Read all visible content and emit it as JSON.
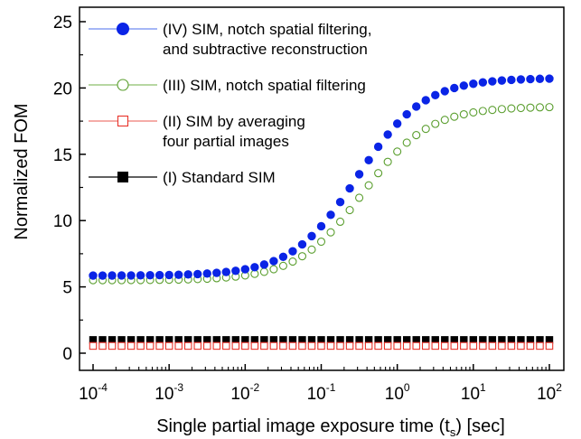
{
  "chart_data": {
    "type": "scatter",
    "xscale": "log",
    "xlim": [
      0.0001,
      100
    ],
    "ylim": [
      0,
      25
    ],
    "xlabel_main": "Single partial image exposure time (t",
    "xlabel_sub": "s",
    "xlabel_end": ") [sec]",
    "ylabel": "Normalized FOM",
    "x_ticks": [
      {
        "base": "10",
        "exp": "-4",
        "value": 0.0001
      },
      {
        "base": "10",
        "exp": "-3",
        "value": 0.001
      },
      {
        "base": "10",
        "exp": "-2",
        "value": 0.01
      },
      {
        "base": "10",
        "exp": "-1",
        "value": 0.1
      },
      {
        "base": "10",
        "exp": "0",
        "value": 1
      },
      {
        "base": "10",
        "exp": "1",
        "value": 10
      },
      {
        "base": "10",
        "exp": "2",
        "value": 100
      }
    ],
    "y_ticks": [
      "0",
      "5",
      "10",
      "15",
      "20",
      "25"
    ],
    "legend_position": "top-left",
    "series": [
      {
        "name_lines": [
          "(IV) SIM, notch spatial filtering,",
          "and subtractive reconstruction"
        ],
        "marker": "filled-circle",
        "color": "#0a24e6",
        "line_color": "#6f8bf0",
        "low": 5.85,
        "high": 20.75,
        "t0": 0.3,
        "n": 1.0
      },
      {
        "name_lines": [
          "(III) SIM, notch spatial filtering"
        ],
        "marker": "open-circle",
        "color": "#5a9e2e",
        "line_color": "#8cbf6a",
        "low": 5.5,
        "high": 18.6,
        "t0": 0.35,
        "n": 1.0
      },
      {
        "name_lines": [
          "(II) SIM by averaging",
          "four partial images"
        ],
        "marker": "open-square",
        "color": "#e8332a",
        "line_color": "#ef7a74",
        "low": 0.55,
        "high": 0.55,
        "t0": 1,
        "n": 1
      },
      {
        "name_lines": [
          "(I) Standard SIM"
        ],
        "marker": "filled-square",
        "color": "#000000",
        "line_color": "#000000",
        "low": 1.0,
        "high": 1.0,
        "t0": 1,
        "n": 1
      }
    ],
    "points_per_decade": 8
  }
}
